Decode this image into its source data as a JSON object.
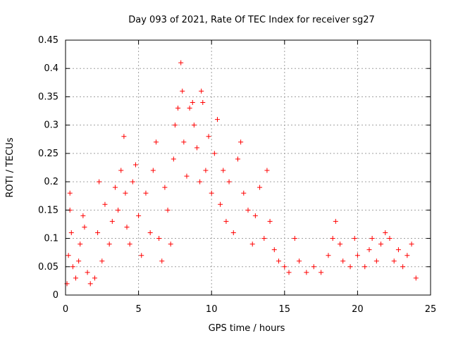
{
  "chart_data": {
    "type": "scatter",
    "title": "Day 093 of 2021, Rate Of TEC Index for receiver sg27",
    "xlabel": "GPS time / hours",
    "ylabel": "ROTI / TECUs",
    "xlim": [
      0,
      25
    ],
    "ylim": [
      0,
      0.45
    ],
    "xticks": [
      "0",
      "5",
      "10",
      "15",
      "20",
      "25"
    ],
    "xtick_values": [
      0,
      5,
      10,
      15,
      20,
      25
    ],
    "yticks": [
      "0",
      "0.05",
      "0.1",
      "0.15",
      "0.2",
      "0.25",
      "0.3",
      "0.35",
      "0.4",
      "0.45"
    ],
    "ytick_values": [
      0,
      0.05,
      0.1,
      0.15,
      0.2,
      0.25,
      0.3,
      0.35,
      0.4,
      0.45
    ],
    "grid": true,
    "marker": "+",
    "color": "#ff0000",
    "series": [
      {
        "points": [
          [
            0.1,
            0.02
          ],
          [
            0.2,
            0.07
          ],
          [
            0.3,
            0.15
          ],
          [
            0.3,
            0.18
          ],
          [
            0.4,
            0.11
          ],
          [
            0.5,
            0.05
          ],
          [
            0.7,
            0.03
          ],
          [
            0.9,
            0.06
          ],
          [
            1.0,
            0.09
          ],
          [
            1.2,
            0.14
          ],
          [
            1.3,
            0.12
          ],
          [
            1.5,
            0.04
          ],
          [
            1.7,
            0.02
          ],
          [
            2.0,
            0.03
          ],
          [
            2.2,
            0.11
          ],
          [
            2.3,
            0.2
          ],
          [
            2.5,
            0.06
          ],
          [
            2.7,
            0.16
          ],
          [
            3.0,
            0.09
          ],
          [
            3.2,
            0.13
          ],
          [
            3.4,
            0.19
          ],
          [
            3.6,
            0.15
          ],
          [
            3.8,
            0.22
          ],
          [
            4.0,
            0.28
          ],
          [
            4.1,
            0.18
          ],
          [
            4.2,
            0.12
          ],
          [
            4.4,
            0.09
          ],
          [
            4.6,
            0.2
          ],
          [
            4.8,
            0.23
          ],
          [
            5.0,
            0.14
          ],
          [
            5.2,
            0.07
          ],
          [
            5.5,
            0.18
          ],
          [
            5.8,
            0.11
          ],
          [
            6.0,
            0.22
          ],
          [
            6.2,
            0.27
          ],
          [
            6.4,
            0.1
          ],
          [
            6.6,
            0.06
          ],
          [
            6.8,
            0.19
          ],
          [
            7.0,
            0.15
          ],
          [
            7.2,
            0.09
          ],
          [
            7.4,
            0.24
          ],
          [
            7.5,
            0.3
          ],
          [
            7.7,
            0.33
          ],
          [
            7.9,
            0.41
          ],
          [
            8.0,
            0.36
          ],
          [
            8.1,
            0.27
          ],
          [
            8.3,
            0.21
          ],
          [
            8.5,
            0.33
          ],
          [
            8.7,
            0.34
          ],
          [
            8.8,
            0.3
          ],
          [
            9.0,
            0.26
          ],
          [
            9.2,
            0.2
          ],
          [
            9.3,
            0.36
          ],
          [
            9.4,
            0.34
          ],
          [
            9.6,
            0.22
          ],
          [
            9.8,
            0.28
          ],
          [
            10.0,
            0.18
          ],
          [
            10.2,
            0.25
          ],
          [
            10.4,
            0.31
          ],
          [
            10.6,
            0.16
          ],
          [
            10.8,
            0.22
          ],
          [
            11.0,
            0.13
          ],
          [
            11.2,
            0.2
          ],
          [
            11.5,
            0.11
          ],
          [
            11.8,
            0.24
          ],
          [
            12.0,
            0.27
          ],
          [
            12.2,
            0.18
          ],
          [
            12.5,
            0.15
          ],
          [
            12.8,
            0.09
          ],
          [
            13.0,
            0.14
          ],
          [
            13.3,
            0.19
          ],
          [
            13.6,
            0.1
          ],
          [
            13.8,
            0.22
          ],
          [
            14.0,
            0.13
          ],
          [
            14.3,
            0.08
          ],
          [
            14.6,
            0.06
          ],
          [
            15.0,
            0.05
          ],
          [
            15.3,
            0.04
          ],
          [
            15.7,
            0.1
          ],
          [
            16.0,
            0.06
          ],
          [
            16.5,
            0.04
          ],
          [
            17.0,
            0.05
          ],
          [
            17.5,
            0.04
          ],
          [
            18.0,
            0.07
          ],
          [
            18.3,
            0.1
          ],
          [
            18.5,
            0.13
          ],
          [
            18.8,
            0.09
          ],
          [
            19.0,
            0.06
          ],
          [
            19.5,
            0.05
          ],
          [
            19.8,
            0.1
          ],
          [
            20.0,
            0.07
          ],
          [
            20.5,
            0.05
          ],
          [
            20.8,
            0.08
          ],
          [
            21.0,
            0.1
          ],
          [
            21.3,
            0.06
          ],
          [
            21.6,
            0.09
          ],
          [
            21.9,
            0.11
          ],
          [
            22.2,
            0.1
          ],
          [
            22.5,
            0.06
          ],
          [
            22.8,
            0.08
          ],
          [
            23.1,
            0.05
          ],
          [
            23.4,
            0.07
          ],
          [
            23.7,
            0.09
          ],
          [
            24.0,
            0.03
          ]
        ]
      }
    ]
  }
}
